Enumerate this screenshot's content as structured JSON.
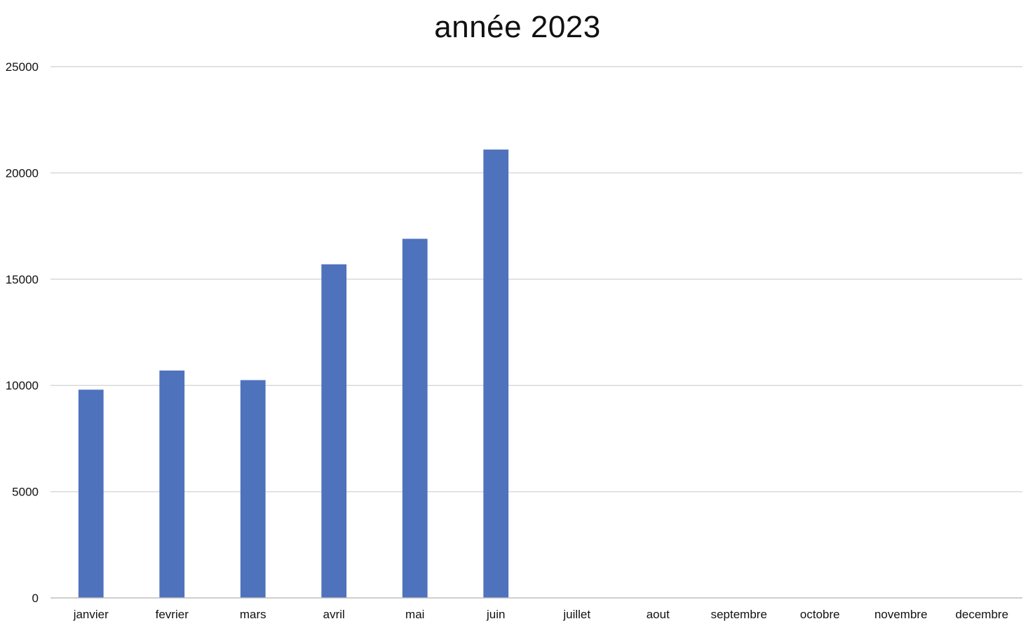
{
  "chart_data": {
    "type": "bar",
    "title": "année 2023",
    "xlabel": "",
    "ylabel": "",
    "categories": [
      "janvier",
      "fevrier",
      "mars",
      "avril",
      "mai",
      "juin",
      "juillet",
      "aout",
      "septembre",
      "octobre",
      "novembre",
      "decembre"
    ],
    "values": [
      9800,
      10700,
      10250,
      15700,
      16900,
      21100,
      null,
      null,
      null,
      null,
      null,
      null
    ],
    "ylim": [
      0,
      25000
    ],
    "yticks": [
      0,
      5000,
      10000,
      15000,
      20000,
      25000
    ],
    "grid": true,
    "legend": "none",
    "colors": {
      "bar": "#4F72BD",
      "grid": "#D9D9D9",
      "axis": "#BFBFBF",
      "text": "#111111"
    }
  }
}
